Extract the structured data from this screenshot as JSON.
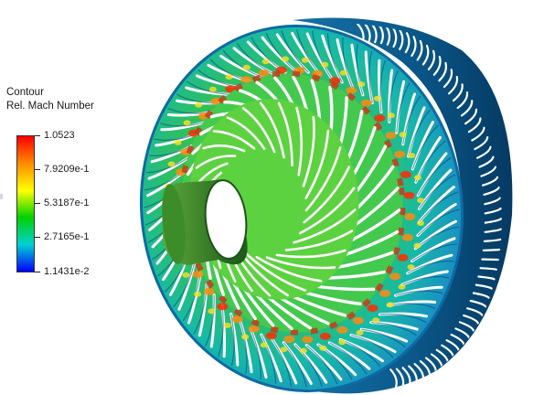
{
  "legend": {
    "title_line1": "Contour",
    "title_line2": "Rel. Mach Number",
    "gradient_colors": [
      "#ff0000",
      "#ff8a00",
      "#ffff00",
      "#00d200",
      "#00d2d2",
      "#0000ff"
    ],
    "ticks": [
      {
        "label": "1.0523",
        "value": 1.0523
      },
      {
        "label": "7.9209e-1",
        "value": 0.79209
      },
      {
        "label": "5.3187e-1",
        "value": 0.53187
      },
      {
        "label": "2.7165e-1",
        "value": 0.27165
      },
      {
        "label": "1.1431e-2",
        "value": 0.011431
      }
    ]
  },
  "model": {
    "blade_count": 64,
    "vane_count": 36,
    "outer_slot_count": 56,
    "colors": {
      "rim": "#0a4f7e",
      "rim_dark": "#062f52",
      "disk": "#38c66d",
      "hub_inner": "#2a8f2f",
      "hub_shaft": "#1e5f1b",
      "hot": "#ff3a10"
    }
  }
}
